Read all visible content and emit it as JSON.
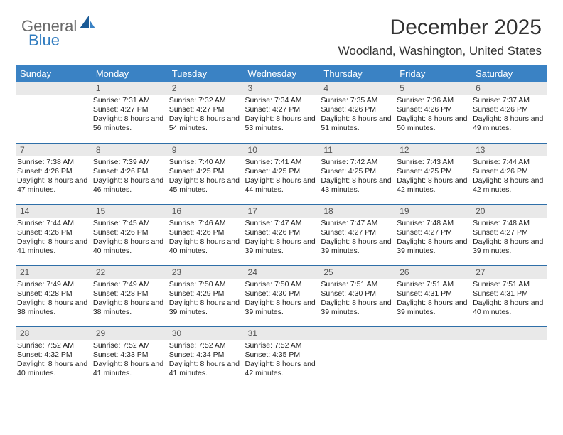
{
  "logo": {
    "part1": "General",
    "part2": "Blue"
  },
  "title": "December 2025",
  "location": "Woodland, Washington, United States",
  "colors": {
    "header_bg": "#3a82c4",
    "header_text": "#ffffff",
    "daynum_bg": "#e9e9e9",
    "daynum_text": "#555555",
    "border": "#2f6fa8",
    "logo_gray": "#6a6a6a",
    "logo_blue": "#2f7bbf"
  },
  "weekdays": [
    "Sunday",
    "Monday",
    "Tuesday",
    "Wednesday",
    "Thursday",
    "Friday",
    "Saturday"
  ],
  "weeks": [
    [
      {
        "day": ""
      },
      {
        "day": "1",
        "sunrise": "Sunrise: 7:31 AM",
        "sunset": "Sunset: 4:27 PM",
        "daylight": "Daylight: 8 hours and 56 minutes."
      },
      {
        "day": "2",
        "sunrise": "Sunrise: 7:32 AM",
        "sunset": "Sunset: 4:27 PM",
        "daylight": "Daylight: 8 hours and 54 minutes."
      },
      {
        "day": "3",
        "sunrise": "Sunrise: 7:34 AM",
        "sunset": "Sunset: 4:27 PM",
        "daylight": "Daylight: 8 hours and 53 minutes."
      },
      {
        "day": "4",
        "sunrise": "Sunrise: 7:35 AM",
        "sunset": "Sunset: 4:26 PM",
        "daylight": "Daylight: 8 hours and 51 minutes."
      },
      {
        "day": "5",
        "sunrise": "Sunrise: 7:36 AM",
        "sunset": "Sunset: 4:26 PM",
        "daylight": "Daylight: 8 hours and 50 minutes."
      },
      {
        "day": "6",
        "sunrise": "Sunrise: 7:37 AM",
        "sunset": "Sunset: 4:26 PM",
        "daylight": "Daylight: 8 hours and 49 minutes."
      }
    ],
    [
      {
        "day": "7",
        "sunrise": "Sunrise: 7:38 AM",
        "sunset": "Sunset: 4:26 PM",
        "daylight": "Daylight: 8 hours and 47 minutes."
      },
      {
        "day": "8",
        "sunrise": "Sunrise: 7:39 AM",
        "sunset": "Sunset: 4:26 PM",
        "daylight": "Daylight: 8 hours and 46 minutes."
      },
      {
        "day": "9",
        "sunrise": "Sunrise: 7:40 AM",
        "sunset": "Sunset: 4:25 PM",
        "daylight": "Daylight: 8 hours and 45 minutes."
      },
      {
        "day": "10",
        "sunrise": "Sunrise: 7:41 AM",
        "sunset": "Sunset: 4:25 PM",
        "daylight": "Daylight: 8 hours and 44 minutes."
      },
      {
        "day": "11",
        "sunrise": "Sunrise: 7:42 AM",
        "sunset": "Sunset: 4:25 PM",
        "daylight": "Daylight: 8 hours and 43 minutes."
      },
      {
        "day": "12",
        "sunrise": "Sunrise: 7:43 AM",
        "sunset": "Sunset: 4:25 PM",
        "daylight": "Daylight: 8 hours and 42 minutes."
      },
      {
        "day": "13",
        "sunrise": "Sunrise: 7:44 AM",
        "sunset": "Sunset: 4:26 PM",
        "daylight": "Daylight: 8 hours and 42 minutes."
      }
    ],
    [
      {
        "day": "14",
        "sunrise": "Sunrise: 7:44 AM",
        "sunset": "Sunset: 4:26 PM",
        "daylight": "Daylight: 8 hours and 41 minutes."
      },
      {
        "day": "15",
        "sunrise": "Sunrise: 7:45 AM",
        "sunset": "Sunset: 4:26 PM",
        "daylight": "Daylight: 8 hours and 40 minutes."
      },
      {
        "day": "16",
        "sunrise": "Sunrise: 7:46 AM",
        "sunset": "Sunset: 4:26 PM",
        "daylight": "Daylight: 8 hours and 40 minutes."
      },
      {
        "day": "17",
        "sunrise": "Sunrise: 7:47 AM",
        "sunset": "Sunset: 4:26 PM",
        "daylight": "Daylight: 8 hours and 39 minutes."
      },
      {
        "day": "18",
        "sunrise": "Sunrise: 7:47 AM",
        "sunset": "Sunset: 4:27 PM",
        "daylight": "Daylight: 8 hours and 39 minutes."
      },
      {
        "day": "19",
        "sunrise": "Sunrise: 7:48 AM",
        "sunset": "Sunset: 4:27 PM",
        "daylight": "Daylight: 8 hours and 39 minutes."
      },
      {
        "day": "20",
        "sunrise": "Sunrise: 7:48 AM",
        "sunset": "Sunset: 4:27 PM",
        "daylight": "Daylight: 8 hours and 39 minutes."
      }
    ],
    [
      {
        "day": "21",
        "sunrise": "Sunrise: 7:49 AM",
        "sunset": "Sunset: 4:28 PM",
        "daylight": "Daylight: 8 hours and 38 minutes."
      },
      {
        "day": "22",
        "sunrise": "Sunrise: 7:49 AM",
        "sunset": "Sunset: 4:28 PM",
        "daylight": "Daylight: 8 hours and 38 minutes."
      },
      {
        "day": "23",
        "sunrise": "Sunrise: 7:50 AM",
        "sunset": "Sunset: 4:29 PM",
        "daylight": "Daylight: 8 hours and 39 minutes."
      },
      {
        "day": "24",
        "sunrise": "Sunrise: 7:50 AM",
        "sunset": "Sunset: 4:30 PM",
        "daylight": "Daylight: 8 hours and 39 minutes."
      },
      {
        "day": "25",
        "sunrise": "Sunrise: 7:51 AM",
        "sunset": "Sunset: 4:30 PM",
        "daylight": "Daylight: 8 hours and 39 minutes."
      },
      {
        "day": "26",
        "sunrise": "Sunrise: 7:51 AM",
        "sunset": "Sunset: 4:31 PM",
        "daylight": "Daylight: 8 hours and 39 minutes."
      },
      {
        "day": "27",
        "sunrise": "Sunrise: 7:51 AM",
        "sunset": "Sunset: 4:31 PM",
        "daylight": "Daylight: 8 hours and 40 minutes."
      }
    ],
    [
      {
        "day": "28",
        "sunrise": "Sunrise: 7:52 AM",
        "sunset": "Sunset: 4:32 PM",
        "daylight": "Daylight: 8 hours and 40 minutes."
      },
      {
        "day": "29",
        "sunrise": "Sunrise: 7:52 AM",
        "sunset": "Sunset: 4:33 PM",
        "daylight": "Daylight: 8 hours and 41 minutes."
      },
      {
        "day": "30",
        "sunrise": "Sunrise: 7:52 AM",
        "sunset": "Sunset: 4:34 PM",
        "daylight": "Daylight: 8 hours and 41 minutes."
      },
      {
        "day": "31",
        "sunrise": "Sunrise: 7:52 AM",
        "sunset": "Sunset: 4:35 PM",
        "daylight": "Daylight: 8 hours and 42 minutes."
      },
      {
        "day": ""
      },
      {
        "day": ""
      },
      {
        "day": ""
      }
    ]
  ]
}
